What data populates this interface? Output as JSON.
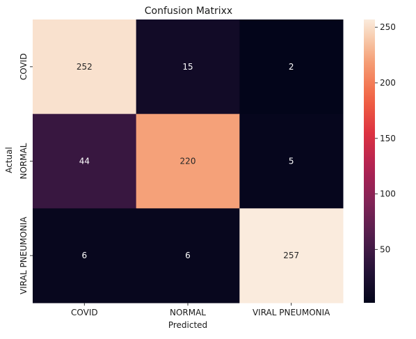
{
  "chart_data": {
    "type": "heatmap",
    "title": "Confusion Matrixx",
    "xlabel": "Predicted",
    "ylabel": "Actual",
    "x_categories": [
      "COVID",
      "NORMAL",
      "VIRAL PNEUMONIA"
    ],
    "y_categories": [
      "COVID",
      "NORMAL",
      "VIRAL PNEUMONIA"
    ],
    "values": [
      [
        252,
        15,
        2
      ],
      [
        44,
        220,
        5
      ],
      [
        6,
        6,
        257
      ]
    ],
    "colorbar": {
      "min": 2,
      "max": 257,
      "ticks": [
        50,
        100,
        150,
        200,
        250
      ],
      "colormap": "rocket",
      "placement": "right"
    },
    "grid": false
  }
}
